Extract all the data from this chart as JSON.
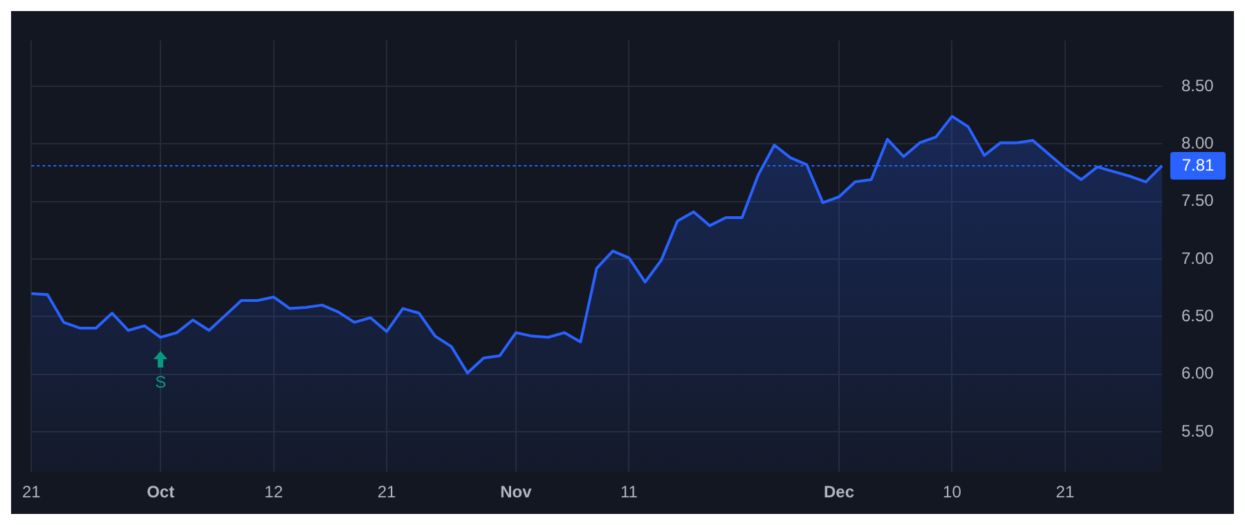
{
  "chart_data": {
    "type": "area",
    "categories": [
      "21",
      null,
      null,
      null,
      null,
      null,
      null,
      null,
      "Oct",
      null,
      null,
      null,
      null,
      null,
      null,
      "12",
      null,
      null,
      null,
      null,
      null,
      null,
      "21",
      null,
      null,
      null,
      null,
      null,
      null,
      null,
      "Nov",
      null,
      null,
      null,
      null,
      null,
      null,
      "11",
      null,
      null,
      null,
      null,
      null,
      null,
      null,
      null,
      null,
      null,
      null,
      null,
      "Dec",
      null,
      null,
      null,
      null,
      null,
      null,
      "10",
      null,
      null,
      null,
      null,
      null,
      null,
      "21",
      null,
      null,
      null,
      null,
      null,
      null
    ],
    "series": [
      {
        "color": "#2962ff",
        "values": [
          6.7,
          6.69,
          6.45,
          6.4,
          6.4,
          6.53,
          6.38,
          6.42,
          6.32,
          6.36,
          6.47,
          6.38,
          6.51,
          6.64,
          6.64,
          6.67,
          6.57,
          6.58,
          6.6,
          6.54,
          6.45,
          6.49,
          6.37,
          6.57,
          6.53,
          6.33,
          6.24,
          6.01,
          6.14,
          6.16,
          6.36,
          6.33,
          6.32,
          6.36,
          6.28,
          6.92,
          7.07,
          7.01,
          6.8,
          6.99,
          7.33,
          7.41,
          7.29,
          7.36,
          7.36,
          7.73,
          7.99,
          7.88,
          7.82,
          7.49,
          7.54,
          7.67,
          7.69,
          8.04,
          7.89,
          8.01,
          8.06,
          8.24,
          8.15,
          7.9,
          8.01,
          8.01,
          8.03,
          7.91,
          7.79,
          7.69,
          7.8,
          7.76,
          7.72,
          7.67,
          7.81
        ]
      }
    ],
    "ylim": [
      5.15,
      8.9
    ],
    "yticks": [
      {
        "value": 5.5,
        "label": "5.50"
      },
      {
        "value": 6,
        "label": "6.00"
      },
      {
        "value": 6.5,
        "label": "6.50"
      },
      {
        "value": 7,
        "label": "7.00"
      },
      {
        "value": 7.5,
        "label": "7.50"
      },
      {
        "value": 8,
        "label": "8.00"
      },
      {
        "value": 8.5,
        "label": "8.50"
      }
    ],
    "grid": true,
    "legend": false,
    "marker": "none",
    "line_style": "solid",
    "ref_lines": [
      {
        "axis": "y",
        "value": 7.81,
        "label": "7.81",
        "color": "#2962ff",
        "line_style": "dotted"
      }
    ],
    "annotations": [
      {
        "text": "S",
        "x": "Oct",
        "y": 6.32
      }
    ]
  }
}
